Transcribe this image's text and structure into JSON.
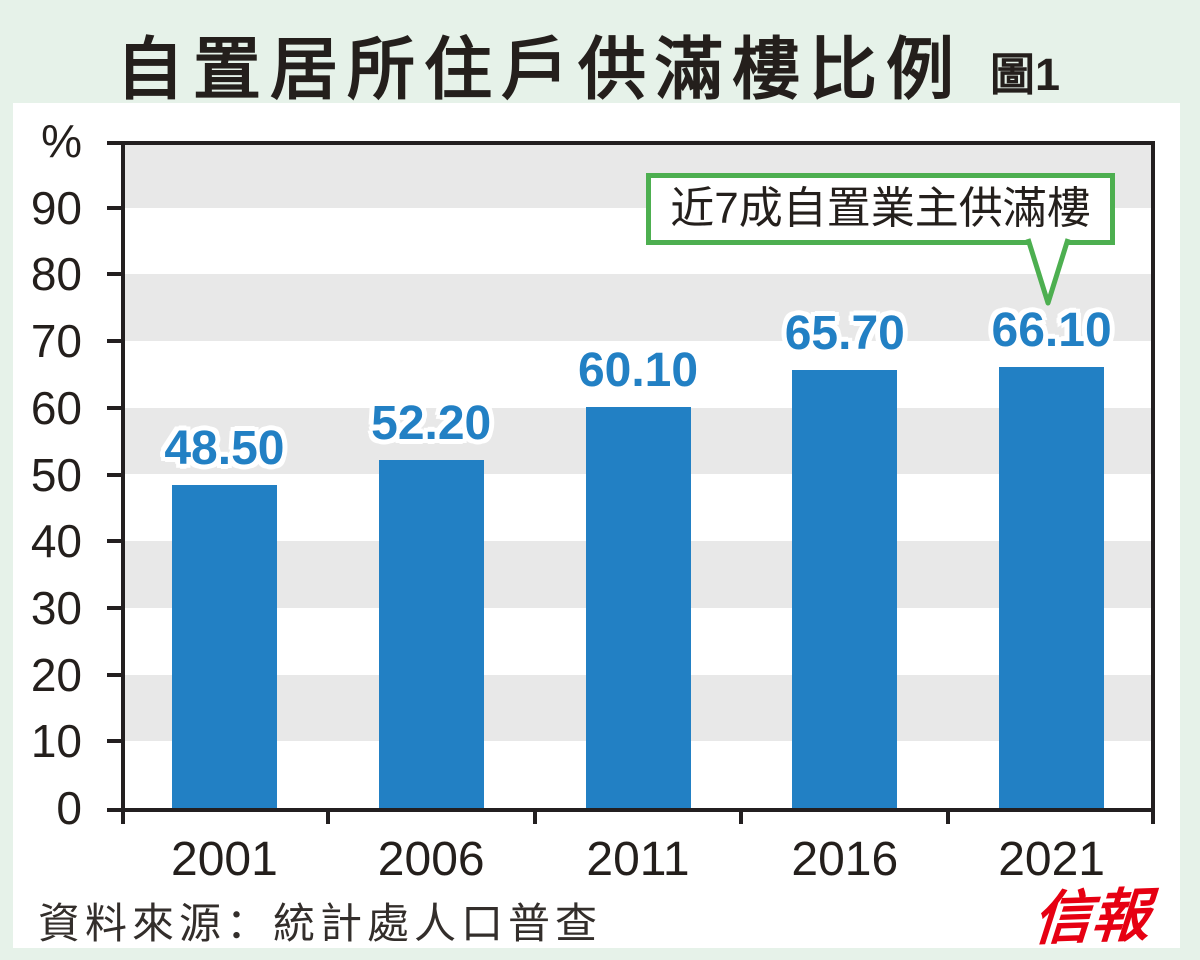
{
  "header": {
    "title": "自置居所住戶供滿樓比例",
    "figure_label": "圖1"
  },
  "footer": {
    "source": "資料來源：統計處人口普查",
    "logo": "信報"
  },
  "chart_data": {
    "type": "bar",
    "title": "自置居所住戶供滿樓比例",
    "categories": [
      "2001",
      "2006",
      "2011",
      "2016",
      "2021"
    ],
    "values": [
      48.5,
      52.2,
      60.1,
      65.7,
      66.1
    ],
    "value_labels": [
      "48.50",
      "52.20",
      "60.10",
      "65.70",
      "66.10"
    ],
    "xlabel": "",
    "ylabel": "%",
    "ylim": [
      0,
      100
    ],
    "yticks": [
      0,
      10,
      20,
      30,
      40,
      50,
      60,
      70,
      80,
      90
    ],
    "ytick_top_label": "%",
    "grid": "horizontal-striped-bands",
    "stripe_bands": [
      [
        90,
        100
      ],
      [
        70,
        80
      ],
      [
        50,
        60
      ],
      [
        30,
        40
      ],
      [
        10,
        20
      ]
    ],
    "legend": "none",
    "annotation": {
      "text": "近7成自置業主供滿樓",
      "target_category": "2021"
    },
    "colors": {
      "bar": "#2280C4",
      "value_label": "#2280C4",
      "stripe": "#E8E8E8",
      "axis": "#231F20",
      "annotation_border": "#4DAF50",
      "page_background": "#E6F2E9",
      "panel_background": "#FFFFFF",
      "logo_red": "#E60012"
    }
  }
}
